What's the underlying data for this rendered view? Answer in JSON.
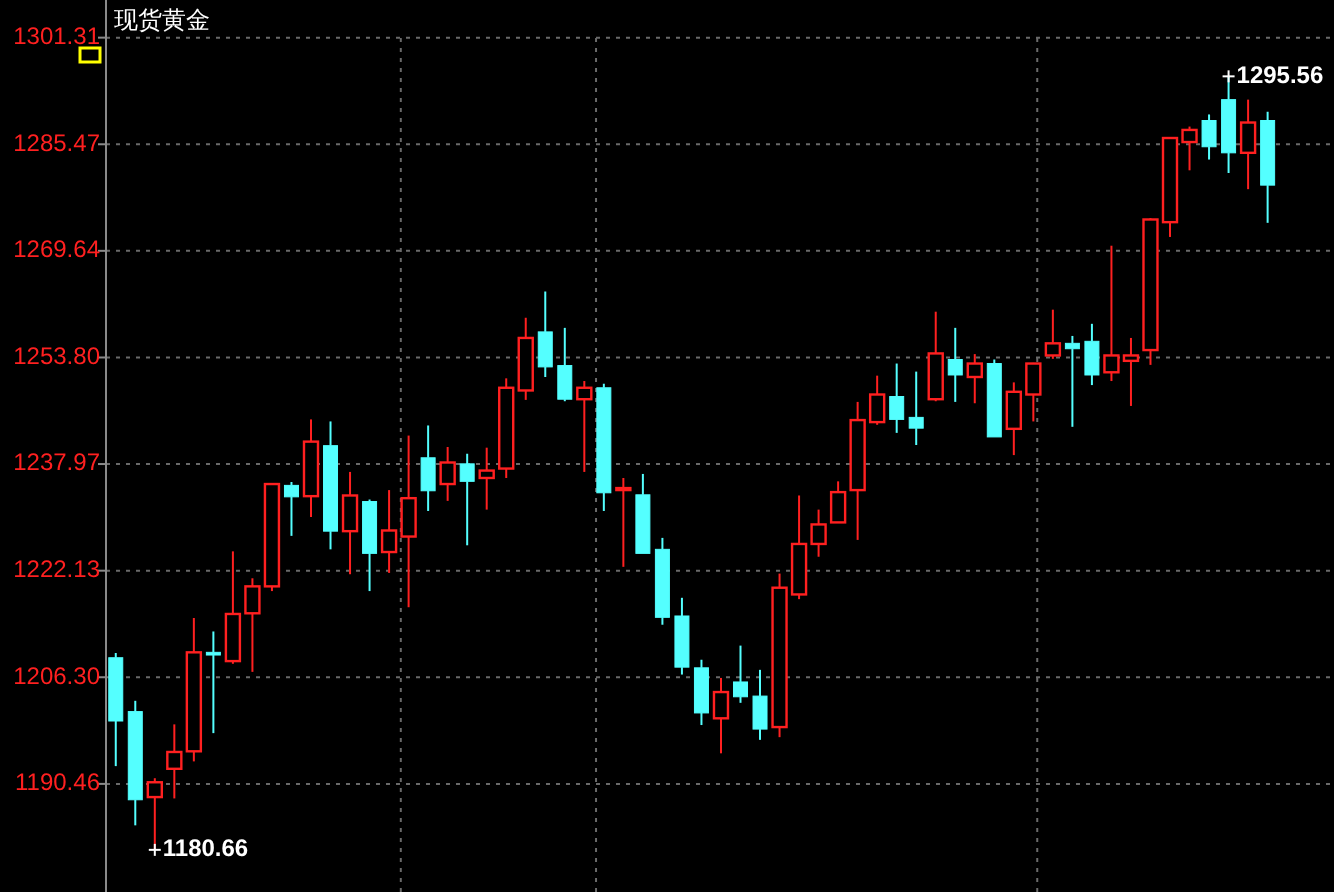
{
  "chart_data": {
    "type": "candlestick",
    "title": "现货黄金",
    "tick_labels": "y",
    "grid": "y",
    "ylim": [
      1174.4,
      1306.9
    ],
    "yticks": [
      1190.46,
      {
        "value": 1206.3,
        "label": "1206.30"
      },
      1222.13,
      1237.97,
      {
        "value": 1253.8,
        "label": "1253.80"
      },
      1269.64,
      1285.47,
      1301.31
    ],
    "categories": [
      null,
      null,
      null,
      null,
      null,
      null,
      null,
      null,
      null,
      null,
      null,
      null,
      null,
      null,
      null,
      null,
      null,
      null,
      null,
      null,
      null,
      null,
      null,
      null,
      null,
      null,
      null,
      null,
      null,
      null,
      null,
      null,
      null,
      null,
      null,
      null,
      null,
      null,
      null,
      null,
      null,
      null,
      null,
      null,
      null,
      null,
      null,
      null,
      null,
      null,
      null,
      null,
      null,
      null,
      null,
      null,
      null,
      null,
      null,
      null
    ],
    "ohlc": [
      [
        1209.2,
        1209.9,
        1193.1,
        1199.8
      ],
      [
        1201.2,
        1202.8,
        1184.3,
        1188.1
      ],
      [
        1188.5,
        1191.3,
        1180.66,
        1190.7
      ],
      [
        1192.7,
        1199.3,
        1188.3,
        1195.2
      ],
      [
        1195.3,
        1215.1,
        1193.8,
        1210.0
      ],
      [
        1210.0,
        1213.1,
        1198.0,
        1209.6
      ],
      [
        1208.7,
        1225.0,
        1208.3,
        1215.7
      ],
      [
        1215.8,
        1221.0,
        1207.1,
        1219.8
      ],
      [
        1219.8,
        1235.1,
        1219.1,
        1235.0
      ],
      [
        1234.8,
        1235.3,
        1227.3,
        1233.1
      ],
      [
        1233.2,
        1244.6,
        1230.1,
        1241.3
      ],
      [
        1240.7,
        1244.3,
        1225.3,
        1228.0
      ],
      [
        1228.0,
        1236.8,
        1221.6,
        1233.3
      ],
      [
        1232.4,
        1232.7,
        1219.1,
        1224.7
      ],
      [
        1224.9,
        1234.1,
        1221.8,
        1228.1
      ],
      [
        1227.2,
        1242.2,
        1216.7,
        1232.9
      ],
      [
        1238.9,
        1243.7,
        1231.0,
        1234.0
      ],
      [
        1235.0,
        1240.5,
        1232.5,
        1238.2
      ],
      [
        1238.0,
        1239.5,
        1225.9,
        1235.4
      ],
      [
        1235.9,
        1240.4,
        1231.2,
        1237.0
      ],
      [
        1237.3,
        1250.7,
        1235.9,
        1249.3
      ],
      [
        1248.9,
        1259.7,
        1247.5,
        1256.7
      ],
      [
        1257.6,
        1263.6,
        1250.9,
        1252.4
      ],
      [
        1252.6,
        1258.2,
        1247.3,
        1247.6
      ],
      [
        1247.6,
        1250.3,
        1236.8,
        1249.3
      ],
      [
        1249.3,
        1249.9,
        1231.0,
        1233.7
      ],
      [
        1234.3,
        1235.9,
        1222.7,
        1234.4
      ],
      [
        1233.4,
        1236.5,
        1224.7,
        1224.7
      ],
      [
        1225.3,
        1227.0,
        1214.1,
        1215.2
      ],
      [
        1215.4,
        1218.1,
        1206.7,
        1207.8
      ],
      [
        1207.7,
        1208.9,
        1199.2,
        1201.0
      ],
      [
        1200.2,
        1206.2,
        1195.0,
        1204.1
      ],
      [
        1205.6,
        1211.0,
        1202.5,
        1203.4
      ],
      [
        1203.5,
        1207.4,
        1197.0,
        1198.6
      ],
      [
        1198.9,
        1221.7,
        1197.4,
        1219.6
      ],
      [
        1218.6,
        1233.3,
        1217.9,
        1226.1
      ],
      [
        1226.1,
        1231.2,
        1224.2,
        1229.0
      ],
      [
        1229.3,
        1235.4,
        1229.3,
        1233.8
      ],
      [
        1234.1,
        1247.2,
        1226.7,
        1244.5
      ],
      [
        1244.2,
        1251.1,
        1243.8,
        1248.3
      ],
      [
        1248.0,
        1252.9,
        1242.6,
        1244.6
      ],
      [
        1244.9,
        1251.7,
        1240.8,
        1243.3
      ],
      [
        1247.6,
        1260.6,
        1247.3,
        1254.4
      ],
      [
        1253.5,
        1258.2,
        1247.2,
        1251.2
      ],
      [
        1250.9,
        1254.3,
        1247.0,
        1252.9
      ],
      [
        1252.9,
        1253.5,
        1242.0,
        1242.0
      ],
      [
        1243.2,
        1250.1,
        1239.3,
        1248.7
      ],
      [
        1248.3,
        1253.0,
        1244.3,
        1252.9
      ],
      [
        1254.1,
        1260.9,
        1253.6,
        1255.9
      ],
      [
        1255.9,
        1257.0,
        1243.5,
        1255.1
      ],
      [
        1256.2,
        1258.8,
        1249.7,
        1251.2
      ],
      [
        1251.6,
        1270.4,
        1250.3,
        1254.1
      ],
      [
        1253.3,
        1256.7,
        1246.6,
        1254.1
      ],
      [
        1254.9,
        1274.5,
        1252.7,
        1274.3
      ],
      [
        1273.9,
        1286.4,
        1271.7,
        1286.4
      ],
      [
        1285.8,
        1288.1,
        1281.6,
        1287.6
      ],
      [
        1289.0,
        1289.9,
        1283.2,
        1285.1
      ],
      [
        1292.1,
        1295.56,
        1281.2,
        1284.2
      ],
      [
        1284.2,
        1292.1,
        1278.8,
        1288.7
      ],
      [
        1289.0,
        1290.3,
        1273.8,
        1279.4
      ]
    ],
    "annotations": [
      "1180.66",
      "1295.56"
    ]
  }
}
